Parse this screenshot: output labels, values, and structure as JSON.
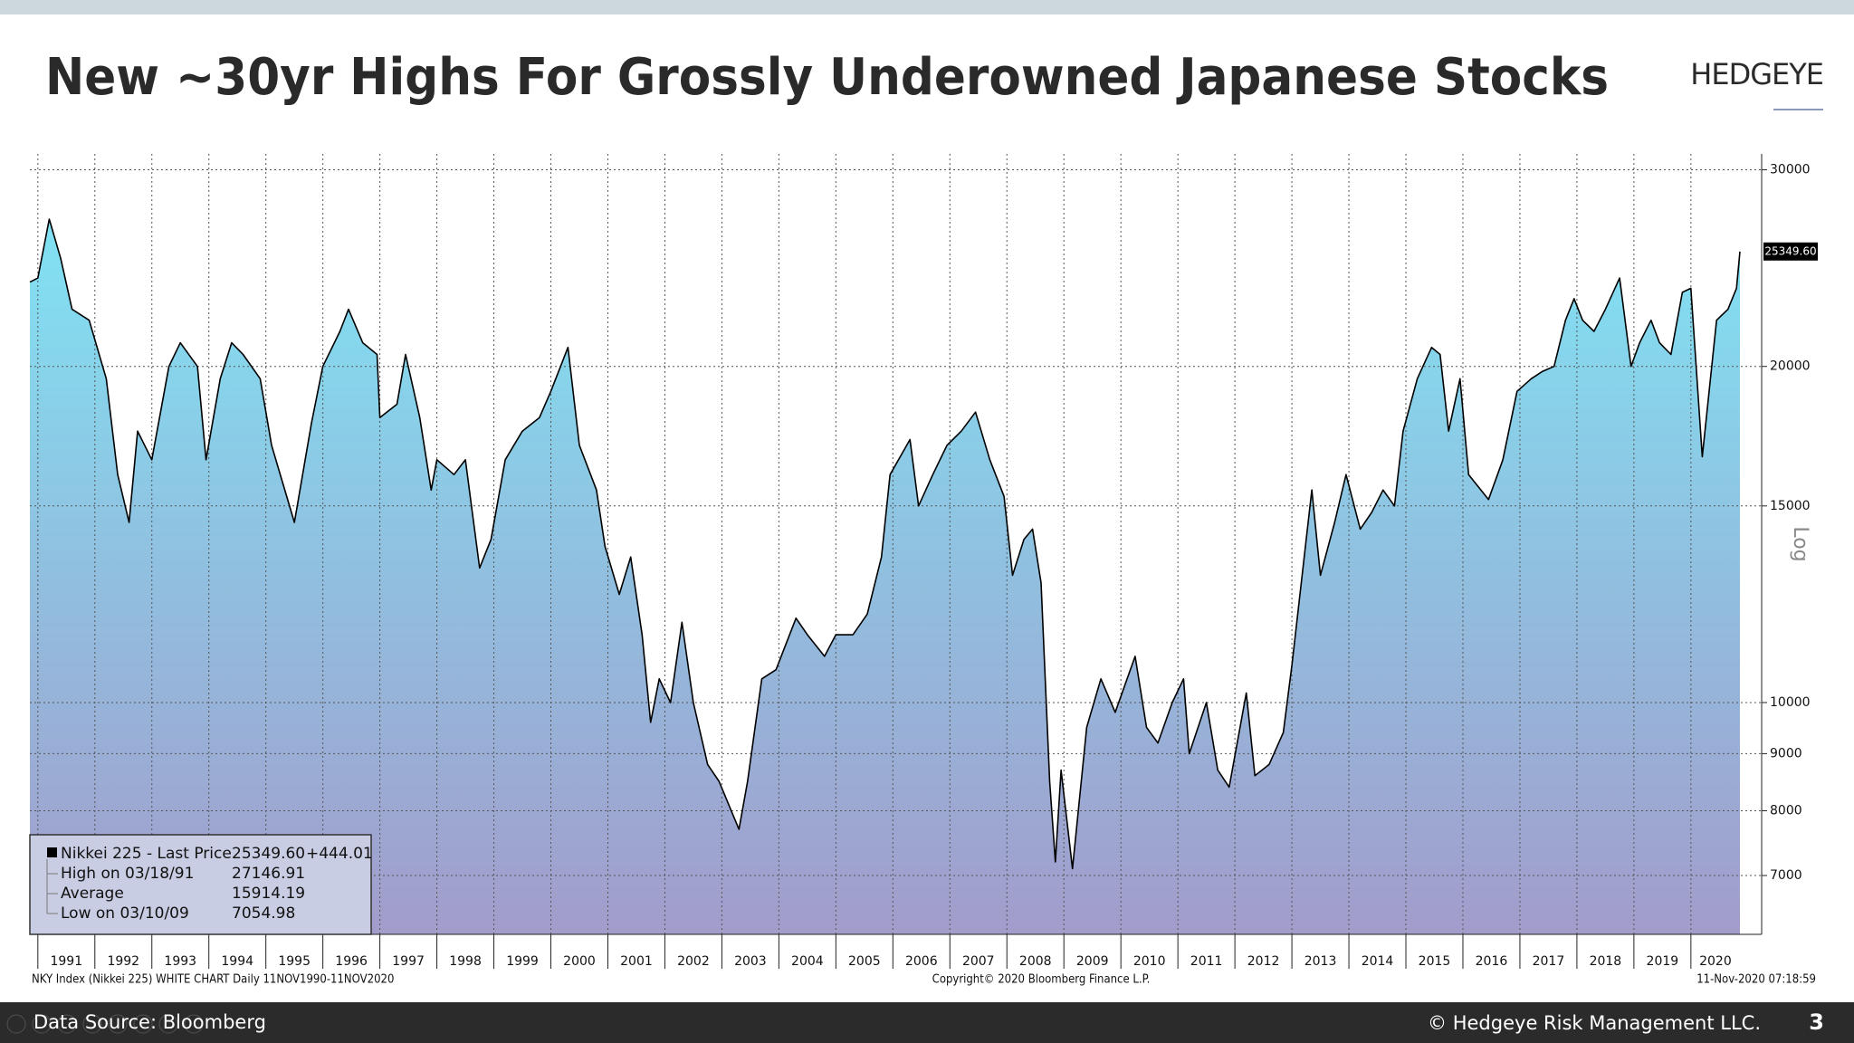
{
  "header": {
    "title": "New ~30yr Highs For Grossly Underowned Japanese Stocks",
    "logo": "HEDGEYE"
  },
  "chart_data": {
    "type": "area",
    "log_scale": true,
    "grid": true,
    "y_axis_label": "Log",
    "fill_top": "#80e2f3",
    "fill_bottom": "#a29ccb",
    "x": [
      1990.86,
      1991.0,
      1991.2,
      1991.4,
      1991.6,
      1991.9,
      1992.2,
      1992.4,
      1992.6,
      1992.75,
      1993.0,
      1993.3,
      1993.5,
      1993.8,
      1993.95,
      1994.2,
      1994.4,
      1994.6,
      1994.9,
      1995.1,
      1995.5,
      1995.8,
      1996.0,
      1996.3,
      1996.45,
      1996.7,
      1996.95,
      1997.0,
      1997.3,
      1997.45,
      1997.7,
      1997.9,
      1998.0,
      1998.3,
      1998.5,
      1998.75,
      1998.95,
      1999.2,
      1999.5,
      1999.8,
      2000.0,
      2000.3,
      2000.5,
      2000.8,
      2000.95,
      2001.2,
      2001.4,
      2001.6,
      2001.75,
      2001.9,
      2002.1,
      2002.3,
      2002.5,
      2002.75,
      2002.95,
      2003.3,
      2003.45,
      2003.7,
      2003.95,
      2004.3,
      2004.5,
      2004.8,
      2005.0,
      2005.3,
      2005.55,
      2005.8,
      2005.95,
      2006.3,
      2006.45,
      2006.7,
      2006.95,
      2007.2,
      2007.45,
      2007.7,
      2007.95,
      2008.1,
      2008.3,
      2008.45,
      2008.6,
      2008.75,
      2008.85,
      2008.95,
      2009.15,
      2009.4,
      2009.65,
      2009.9,
      2010.25,
      2010.45,
      2010.65,
      2010.9,
      2011.1,
      2011.2,
      2011.5,
      2011.7,
      2011.9,
      2012.2,
      2012.35,
      2012.6,
      2012.85,
      2013.0,
      2013.35,
      2013.5,
      2013.75,
      2013.95,
      2014.2,
      2014.4,
      2014.6,
      2014.8,
      2014.95,
      2015.2,
      2015.45,
      2015.6,
      2015.75,
      2015.95,
      2016.1,
      2016.45,
      2016.7,
      2016.95,
      2017.2,
      2017.4,
      2017.6,
      2017.8,
      2017.95,
      2018.1,
      2018.3,
      2018.5,
      2018.75,
      2018.95,
      2019.1,
      2019.3,
      2019.45,
      2019.65,
      2019.85,
      2020.0,
      2020.2,
      2020.45,
      2020.65,
      2020.8,
      2020.86
    ],
    "series": [
      {
        "name": "Nikkei 225 - Last Price",
        "color": "#000000",
        "values": [
          23800,
          24000,
          27100,
          25000,
          22500,
          22000,
          19500,
          16000,
          14500,
          17500,
          16500,
          20000,
          21000,
          20000,
          16500,
          19500,
          21000,
          20500,
          19500,
          17000,
          14500,
          17800,
          20000,
          21500,
          22500,
          21000,
          20500,
          18000,
          18500,
          20500,
          18000,
          15500,
          16500,
          16000,
          16500,
          13200,
          14000,
          16500,
          17500,
          18000,
          19000,
          20800,
          17000,
          15500,
          13800,
          12500,
          13500,
          11500,
          9600,
          10500,
          10000,
          11800,
          10000,
          8800,
          8500,
          7700,
          8500,
          10500,
          10700,
          11900,
          11500,
          11000,
          11500,
          11500,
          12000,
          13500,
          16000,
          17200,
          15000,
          16000,
          17000,
          17500,
          18200,
          16500,
          15300,
          13000,
          14000,
          14300,
          12800,
          8500,
          7200,
          8700,
          7100,
          9500,
          10500,
          9800,
          11000,
          9500,
          9200,
          10000,
          10500,
          9000,
          10000,
          8700,
          8400,
          10200,
          8600,
          8800,
          9400,
          10800,
          15500,
          13000,
          14500,
          16000,
          14300,
          14800,
          15500,
          15000,
          17500,
          19500,
          20800,
          20500,
          17500,
          19500,
          16000,
          15200,
          16500,
          19000,
          19500,
          19800,
          20000,
          22000,
          23000,
          22000,
          21500,
          22500,
          24000,
          20000,
          21000,
          22000,
          21000,
          20500,
          23300,
          23500,
          16600,
          22000,
          22500,
          23500,
          25349.6
        ]
      }
    ],
    "xlim": [
      1990.86,
      2020.86
    ],
    "xticks": [
      1991,
      1992,
      1993,
      1994,
      1995,
      1996,
      1997,
      1998,
      1999,
      2000,
      2001,
      2002,
      2003,
      2004,
      2005,
      2006,
      2007,
      2008,
      2009,
      2010,
      2011,
      2012,
      2013,
      2014,
      2015,
      2016,
      2017,
      2018,
      2019,
      2020
    ],
    "ylim": [
      6200,
      31000
    ],
    "yticks": [
      7000,
      8000,
      9000,
      10000,
      15000,
      20000,
      30000
    ],
    "legend_box": [
      [
        "Nikkei 225 - Last Price",
        "25349.60",
        "+444.01"
      ],
      [
        "High on 03/18/91",
        "27146.91"
      ],
      [
        "Average",
        "15914.19"
      ],
      [
        "Low on 03/10/09",
        "7054.98"
      ]
    ],
    "footnote_left": "NKY Index (Nikkei 225) WHITE CHART  Daily 11NOV1990-11NOV2020",
    "footnote_center": "Copyright© 2020 Bloomberg Finance L.P.",
    "footnote_right": "11-Nov-2020 07:18:59"
  },
  "footer": {
    "source": "Data Source: Bloomberg",
    "copyright": "© Hedgeye Risk Management LLC.",
    "page": "3"
  }
}
